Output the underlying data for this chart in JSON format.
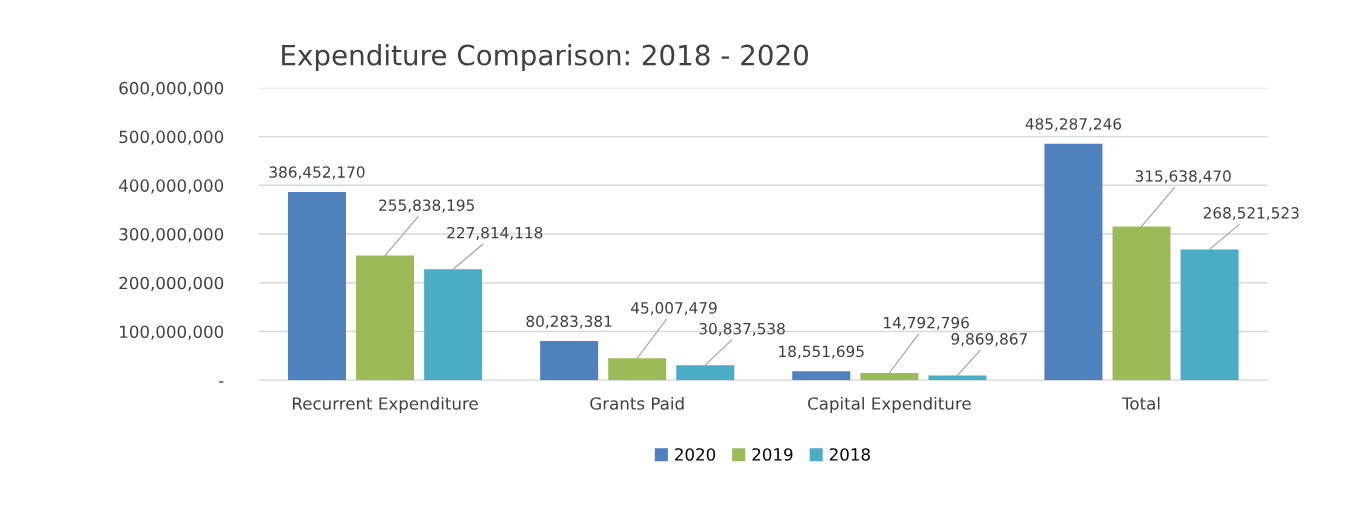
{
  "chart_data": {
    "type": "bar",
    "title": "Expenditure Comparison: 2018 - 2020",
    "categories": [
      "Recurrent Expenditure",
      "Grants Paid",
      "Capital Expenditure",
      "Total"
    ],
    "series": [
      {
        "name": "2020",
        "color": "#4f81bd",
        "values": [
          386452170,
          80283381,
          18551695,
          485287246
        ],
        "value_labels": [
          "386,452,170",
          "80,283,381",
          "18,551,695",
          "485,287,246"
        ]
      },
      {
        "name": "2019",
        "color": "#9bbb59",
        "values": [
          255838195,
          45007479,
          14792796,
          315638470
        ],
        "value_labels": [
          "255,838,195",
          "45,007,479",
          "14,792,796",
          "315,638,470"
        ]
      },
      {
        "name": "2018",
        "color": "#4bacc6",
        "values": [
          227814118,
          30837538,
          9869867,
          268521523
        ],
        "value_labels": [
          "227,814,118",
          "30,837,538",
          "9,869,867",
          "268,521,523"
        ]
      }
    ],
    "ylim": [
      0,
      600000000
    ],
    "yticks": [
      {
        "value": 0,
        "label": "-"
      },
      {
        "value": 100000000,
        "label": "100,000,000"
      },
      {
        "value": 200000000,
        "label": "200,000,000"
      },
      {
        "value": 300000000,
        "label": "300,000,000"
      },
      {
        "value": 400000000,
        "label": "400,000,000"
      },
      {
        "value": 500000000,
        "label": "500,000,000"
      },
      {
        "value": 600000000,
        "label": "600,000,000"
      }
    ],
    "grid": "y",
    "legend": "bottom"
  }
}
